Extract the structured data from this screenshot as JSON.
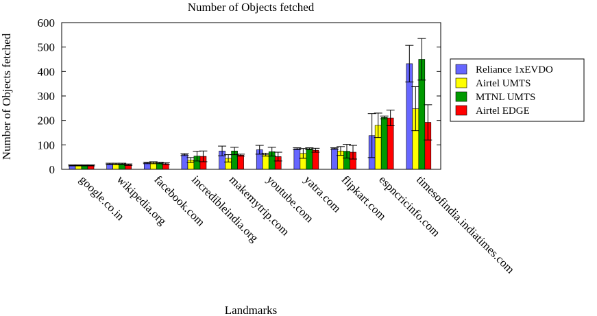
{
  "chart_data": {
    "type": "bar",
    "title": "Number of Objects fetched",
    "xlabel": "Landmarks",
    "ylabel": "Number of Objects fetched",
    "ylim": [
      0,
      600
    ],
    "yticks": [
      0,
      100,
      200,
      300,
      400,
      500,
      600
    ],
    "grid": false,
    "legend_position": "right",
    "error_bars": true,
    "categories": [
      "google.co.in",
      "wikipedia.org",
      "facebook.com",
      "incredibleindia.org",
      "makemytrip.com",
      "youtube.com",
      "yatra.com",
      "flipkart.com",
      "espncricinfo.com",
      "timesofindia.indiatimes.com"
    ],
    "series": [
      {
        "name": "Reliance 1xEVDO",
        "color": "#6666ff",
        "values": [
          16,
          22,
          26,
          60,
          75,
          80,
          84,
          85,
          138,
          432
        ],
        "errors": [
          2,
          3,
          3,
          4,
          20,
          18,
          4,
          3,
          90,
          75
        ]
      },
      {
        "name": "Airtel UMTS",
        "color": "#ffff00",
        "values": [
          16,
          22,
          27,
          38,
          45,
          60,
          65,
          75,
          180,
          248
        ],
        "errors": [
          2,
          3,
          4,
          10,
          15,
          6,
          20,
          18,
          50,
          90
        ]
      },
      {
        "name": "MTNL UMTS",
        "color": "#009900",
        "values": [
          16,
          22,
          26,
          54,
          75,
          72,
          84,
          74,
          212,
          450
        ],
        "errors": [
          2,
          3,
          3,
          20,
          15,
          18,
          4,
          28,
          6,
          85
        ]
      },
      {
        "name": "Airtel EDGE",
        "color": "#ff0000",
        "values": [
          16,
          19,
          23,
          53,
          58,
          52,
          78,
          70,
          210,
          192
        ],
        "errors": [
          2,
          3,
          4,
          22,
          4,
          18,
          8,
          28,
          32,
          72
        ]
      }
    ]
  }
}
